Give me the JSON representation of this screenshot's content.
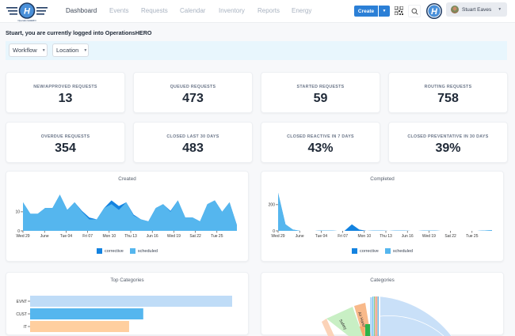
{
  "app": {
    "name": "OperationsHERO",
    "logo_text": "OperationsHERO"
  },
  "nav": {
    "items": [
      {
        "label": "Dashboard",
        "active": true
      },
      {
        "label": "Events",
        "active": false
      },
      {
        "label": "Requests",
        "active": false
      },
      {
        "label": "Calendar",
        "active": false
      },
      {
        "label": "Inventory",
        "active": false
      },
      {
        "label": "Reports",
        "active": false
      },
      {
        "label": "Energy",
        "active": false
      }
    ]
  },
  "toolbar": {
    "create_label": "Create",
    "create_caret": "⌄",
    "qr_icon": "qr-code-icon",
    "search_icon": "search-icon",
    "user_name": "Stuart Eaves",
    "user_caret": "⌄"
  },
  "welcome": "Stuart, you are currently logged into OperationsHERO",
  "filters": [
    {
      "label": "Workflow",
      "caret": "⌄"
    },
    {
      "label": "Location",
      "caret": "⌄"
    }
  ],
  "stats": [
    {
      "label": "NEW/APPROVED REQUESTS",
      "value": "13"
    },
    {
      "label": "QUEUED REQUESTS",
      "value": "473"
    },
    {
      "label": "STARTED REQUESTS",
      "value": "59"
    },
    {
      "label": "ROUTING REQUESTS",
      "value": "758"
    },
    {
      "label": "OVERDUE REQUESTS",
      "value": "354"
    },
    {
      "label": "CLOSED LAST 30 DAYS",
      "value": "483"
    },
    {
      "label": "CLOSED REACTIVE IN 7 DAYS",
      "value": "43%"
    },
    {
      "label": "CLOSED PREVENTATIVE IN 30 DAYS",
      "value": "39%"
    }
  ],
  "colors": {
    "brand": "#2b7fd6",
    "corrective": "#1483e0",
    "scheduled": "#55b6ee",
    "filter_bg": "#e8f6fd"
  },
  "chart_data": [
    {
      "type": "area",
      "title": "Created",
      "x_ticks": [
        "Wed 29",
        "June",
        "Tue 04",
        "Fri 07",
        "Mon 10",
        "Thu 13",
        "Jun 16",
        "Wed 19",
        "Sat 22",
        "Tue 25"
      ],
      "y_ticks": [
        "0",
        "10"
      ],
      "ylim": [
        0,
        22
      ],
      "legend": [
        "corrective",
        "scheduled"
      ],
      "series": [
        {
          "name": "scheduled",
          "values": [
            15,
            9,
            9,
            12,
            12,
            19,
            11,
            15,
            10,
            6,
            6,
            12,
            14,
            11,
            15,
            8,
            6,
            5,
            12,
            14,
            10,
            16,
            7,
            7,
            5,
            14,
            16,
            10,
            15,
            3
          ]
        },
        {
          "name": "corrective",
          "values": [
            0,
            0,
            0,
            0,
            0,
            0,
            0,
            0,
            0.5,
            1,
            0,
            0,
            2,
            2,
            0,
            0.5,
            0,
            0,
            0,
            0,
            0.5,
            0,
            0,
            0,
            0,
            0,
            0,
            0,
            0,
            0
          ]
        }
      ]
    },
    {
      "type": "area",
      "title": "Completed",
      "x_ticks": [
        "Wed 29",
        "June",
        "Tue 04",
        "Fri 07",
        "Mon 10",
        "Thu 13",
        "Jun 16",
        "Wed 19",
        "Sat 22",
        "Tue 25"
      ],
      "y_ticks": [
        "0",
        "200"
      ],
      "ylim": [
        0,
        320
      ],
      "legend": [
        "corrective",
        "scheduled"
      ],
      "series": [
        {
          "name": "scheduled",
          "values": [
            290,
            50,
            10,
            0,
            0,
            0,
            3,
            3,
            0,
            0,
            0,
            0,
            0,
            2,
            2,
            0,
            2,
            2,
            0,
            0,
            3,
            3,
            0,
            0,
            0,
            0,
            0,
            0,
            3,
            5
          ]
        },
        {
          "name": "corrective",
          "values": [
            0,
            0,
            0,
            0,
            0,
            0,
            0,
            0,
            0,
            0,
            50,
            10,
            0,
            0,
            0,
            0,
            0,
            0,
            0,
            0,
            0,
            0,
            0,
            0,
            0,
            0,
            0,
            0,
            0,
            0
          ]
        }
      ]
    },
    {
      "type": "bar",
      "title": "Top Categories",
      "orientation": "horizontal",
      "categories": [
        "EVNT",
        "CUST",
        "IT"
      ],
      "values": [
        100,
        56,
        49
      ],
      "colors": [
        "#bfdcf7",
        "#55b6ee",
        "#ffcf9f"
      ]
    },
    {
      "type": "pie",
      "title": "Categories",
      "labels": [
        "Safety",
        "Air Handl..."
      ],
      "note": "sunburst chart, partially visible"
    }
  ]
}
